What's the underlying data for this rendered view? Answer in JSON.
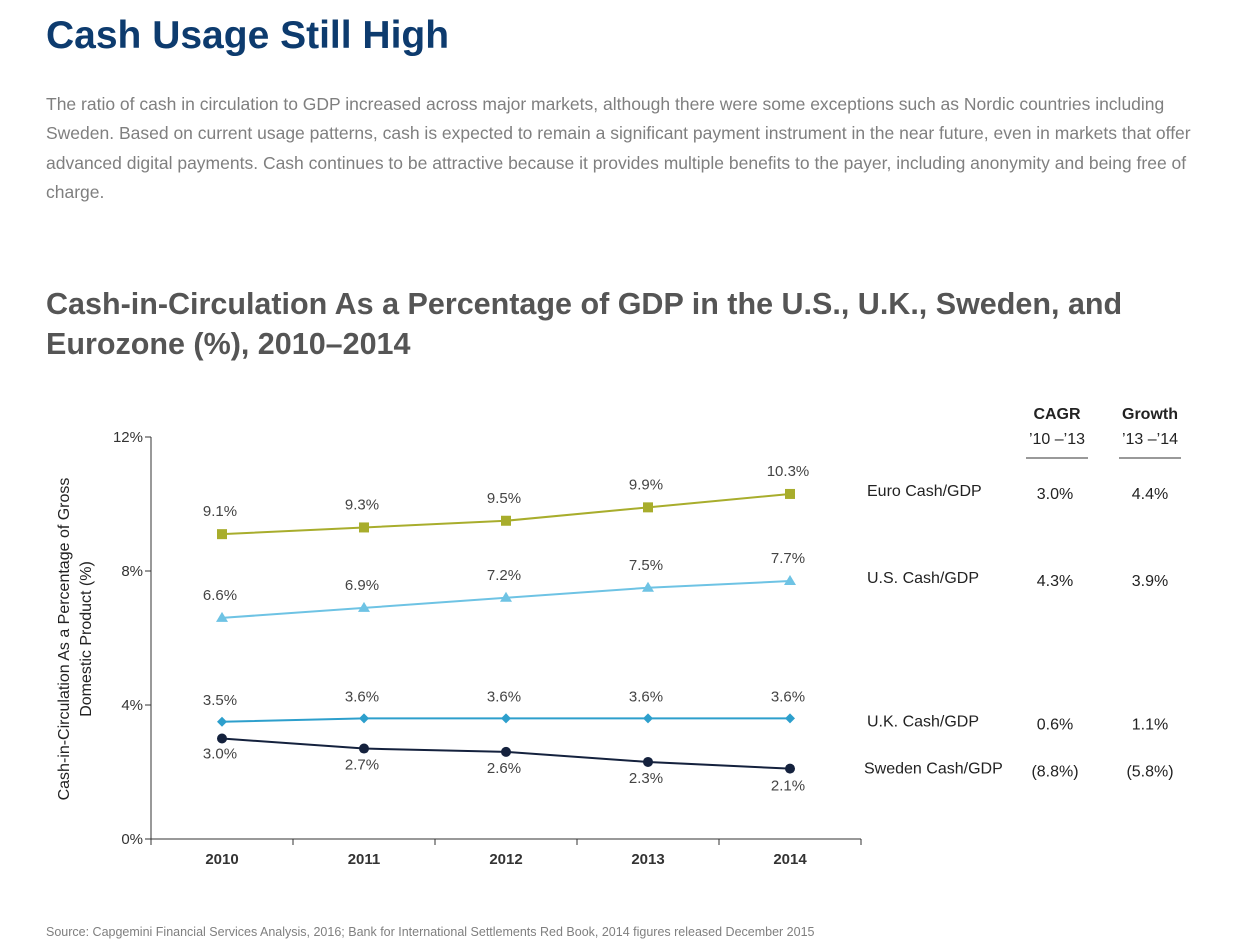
{
  "title": "Cash Usage Still High",
  "intro": "The ratio of cash in circulation to GDP increased across major markets, although there were some exceptions such as Nordic countries including Sweden. Based on current usage patterns, cash is expected to remain a significant payment instrument in the near future, even in markets that offer advanced digital payments. Cash continues to be attractive because it provides multiple benefits to the payer, including anonymity and being free of charge.",
  "source": "Source: Capgemini Financial Services Analysis, 2016; Bank for International Settlements Red Book, 2014 figures released December 2015",
  "chart_data": {
    "type": "line",
    "title": "Cash-in-Circulation As a Percentage of GDP in the U.S., U.K., Sweden, and Eurozone (%), 2010–2014",
    "ylabel": "Cash-in-Circulation As a Percentage of Gross Domestic Product (%)",
    "xlabel": "",
    "categories": [
      "2010",
      "2011",
      "2012",
      "2013",
      "2014"
    ],
    "ylim": [
      0,
      12
    ],
    "yticks": [
      0,
      4,
      8,
      12
    ],
    "ytick_labels": [
      "0%",
      "4%",
      "8%",
      "12%"
    ],
    "grid": false,
    "series": [
      {
        "name": "Euro Cash/GDP",
        "values": [
          9.1,
          9.3,
          9.5,
          9.9,
          10.3
        ],
        "labels": [
          "9.1%",
          "9.3%",
          "9.5%",
          "9.9%",
          "10.3%"
        ],
        "color": "#a8ad2c",
        "marker": "square",
        "cagr": "3.0%",
        "growth": "4.4%",
        "negative": false
      },
      {
        "name": "U.S. Cash/GDP",
        "values": [
          6.6,
          6.9,
          7.2,
          7.5,
          7.7
        ],
        "labels": [
          "6.6%",
          "6.9%",
          "7.2%",
          "7.5%",
          "7.7%"
        ],
        "color": "#6ec3e4",
        "marker": "triangle",
        "cagr": "4.3%",
        "growth": "3.9%",
        "negative": false
      },
      {
        "name": "U.K. Cash/GDP",
        "values": [
          3.5,
          3.6,
          3.6,
          3.6,
          3.6
        ],
        "labels": [
          "3.5%",
          "3.6%",
          "3.6%",
          "3.6%",
          "3.6%"
        ],
        "color": "#2d9fcc",
        "marker": "diamond",
        "cagr": "0.6%",
        "growth": "1.1%",
        "negative": false
      },
      {
        "name": "Sweden Cash/GDP",
        "values": [
          3.0,
          2.7,
          2.6,
          2.3,
          2.1
        ],
        "labels": [
          "3.0%",
          "2.7%",
          "2.6%",
          "2.3%",
          "2.1%"
        ],
        "color": "#14213d",
        "marker": "circle",
        "cagr": "(8.8%)",
        "growth": "(5.8%)",
        "negative": true
      }
    ],
    "side_table": {
      "col1_header": [
        "CAGR",
        "’10 –’13"
      ],
      "col2_header": [
        "Growth",
        "’13 –’14"
      ],
      "negative_color": "#c8202a"
    }
  }
}
